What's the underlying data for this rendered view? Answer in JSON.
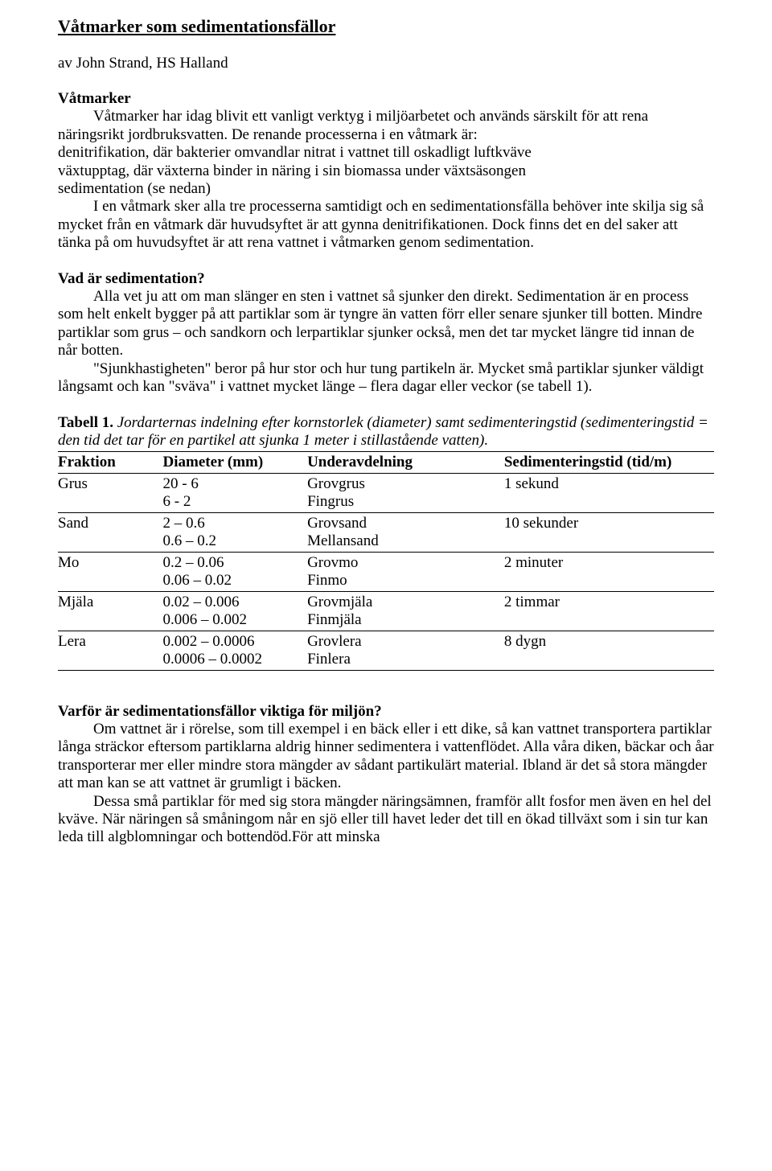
{
  "title": "Våtmarker som sedimentationsfällor",
  "byline": "av John Strand, HS Halland",
  "sections": {
    "vatmarker_heading": "Våtmarker",
    "vatmarker_p1": "Våtmarker har idag blivit ett vanligt verktyg i miljöarbetet och används särskilt för att rena näringsrikt jordbruksvatten. De renande processerna i en våtmark är:",
    "bullet_denitrifikation": "denitrifikation, där bakterier omvandlar nitrat i vattnet till oskadligt luftkväve",
    "bullet_vaxtupptag": "växtupptag, där växterna binder in näring i sin biomassa under växtsäsongen",
    "bullet_sedimentation": "sedimentation (se nedan)",
    "vatmarker_p2": "I en våtmark sker alla tre processerna samtidigt och en sedimentationsfälla behöver inte skilja sig så mycket från en våtmark där huvudsyftet är att gynna denitrifikationen. Dock finns det en del saker att tänka på om huvudsyftet är att rena vattnet i våtmarken genom sedimentation.",
    "vad_heading": "Vad är sedimentation?",
    "vad_p1": "Alla vet ju att om man slänger en sten i vattnet så sjunker den direkt. Sedimentation är en process som helt enkelt bygger på att partiklar som är tyngre än vatten förr eller senare sjunker till botten. Mindre partiklar som grus – och sandkorn och lerpartiklar sjunker också, men det tar mycket längre tid innan de når botten.",
    "vad_p2": "\"Sjunkhastigheten\" beror på hur stor och hur tung partikeln är. Mycket små partiklar sjunker väldigt långsamt och kan \"sväva\" i vattnet mycket länge – flera dagar eller veckor (se tabell 1).",
    "varfor_heading": "Varför är sedimentationsfällor viktiga för miljön?",
    "varfor_p1": "Om vattnet är i rörelse, som till exempel i en bäck eller i ett dike, så kan vattnet transportera partiklar långa sträckor eftersom partiklarna aldrig hinner sedimentera i vattenflödet. Alla våra diken, bäckar och åar transporterar mer eller mindre stora mängder av sådant partikulärt material. Ibland är det så stora mängder att man kan se att vattnet är grumligt i bäcken.",
    "varfor_p2": "Dessa små partiklar för med sig stora mängder näringsämnen, framför allt fosfor men även en hel del kväve. När näringen så småningom når en sjö eller till havet leder det till en ökad tillväxt som i sin tur kan leda till algblomningar och bottendöd.För att minska"
  },
  "table": {
    "caption_bold": "Tabell 1.",
    "caption_italic": " Jordarternas indelning efter kornstorlek (diameter) samt sedimenteringstid (sedimenteringstid = den tid det tar för en partikel att sjunka 1 meter i stillastående vatten).",
    "columns": {
      "fraktion": "Fraktion",
      "diameter": "Diameter (mm)",
      "under": "Underavdelning",
      "sed": "Sedimenteringstid (tid/m)"
    },
    "rows": [
      {
        "fraktion": "Grus",
        "diameter1": "20 - 6",
        "diameter2": "6 - 2",
        "under1": "Grovgrus",
        "under2": "Fingrus",
        "sed": "1 sekund"
      },
      {
        "fraktion": "Sand",
        "diameter1": "2 – 0.6",
        "diameter2": "0.6 – 0.2",
        "under1": "Grovsand",
        "under2": "Mellansand",
        "sed": "10 sekunder"
      },
      {
        "fraktion": "Mo",
        "diameter1": "0.2 – 0.06",
        "diameter2": "0.06 – 0.02",
        "under1": "Grovmo",
        "under2": "Finmo",
        "sed": "2 minuter"
      },
      {
        "fraktion": "Mjäla",
        "diameter1": "0.02 – 0.006",
        "diameter2": "0.006 – 0.002",
        "under1": "Grovmjäla",
        "under2": "Finmjäla",
        "sed": "2 timmar"
      },
      {
        "fraktion": "Lera",
        "diameter1": "0.002 – 0.0006",
        "diameter2": "0.0006 – 0.0002",
        "under1": "Grovlera",
        "under2": "Finlera",
        "sed": "8 dygn"
      }
    ]
  }
}
